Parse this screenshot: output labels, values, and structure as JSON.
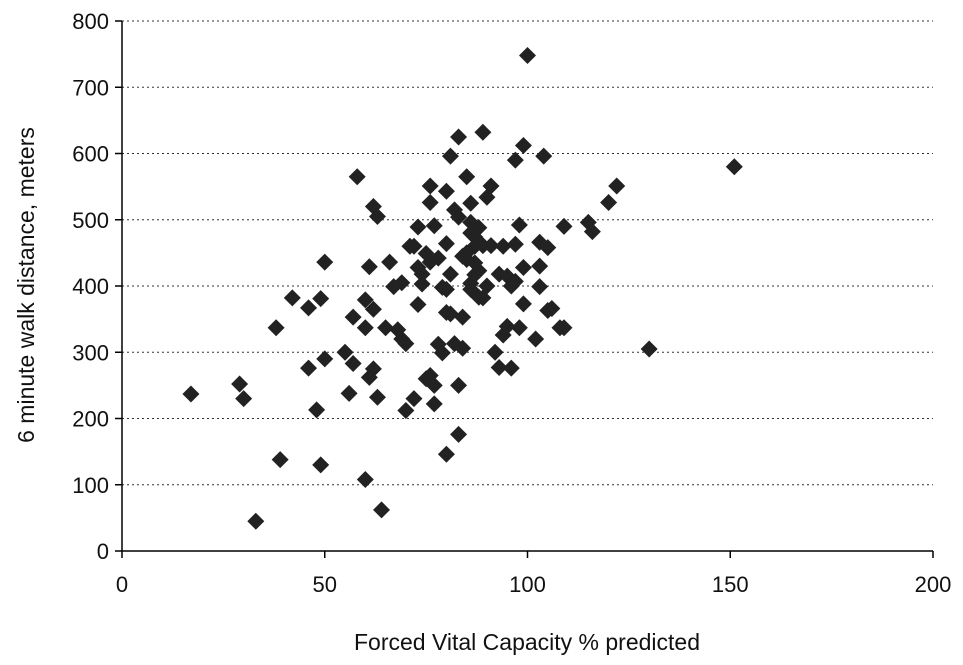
{
  "chart_data": {
    "type": "scatter",
    "title": "",
    "xlabel": "Forced Vital Capacity % predicted",
    "ylabel": "6 minute walk distance, meters",
    "xlim": [
      0,
      200
    ],
    "ylim": [
      0,
      800
    ],
    "xticks": [
      0,
      50,
      100,
      150,
      200
    ],
    "yticks": [
      0,
      100,
      200,
      300,
      400,
      500,
      600,
      700,
      800
    ],
    "grid": "horizontal-dotted",
    "legend": "none",
    "marker": "diamond",
    "marker_color": "#222222",
    "points": [
      [
        17,
        237
      ],
      [
        29,
        252
      ],
      [
        30,
        230
      ],
      [
        33,
        45
      ],
      [
        38,
        337
      ],
      [
        39,
        138
      ],
      [
        42,
        382
      ],
      [
        46,
        367
      ],
      [
        46,
        276
      ],
      [
        48,
        213
      ],
      [
        49,
        130
      ],
      [
        49,
        381
      ],
      [
        50,
        436
      ],
      [
        50,
        290
      ],
      [
        55,
        300
      ],
      [
        56,
        238
      ],
      [
        57,
        353
      ],
      [
        57,
        283
      ],
      [
        58,
        565
      ],
      [
        60,
        379
      ],
      [
        60,
        337
      ],
      [
        60,
        108
      ],
      [
        61,
        429
      ],
      [
        61,
        262
      ],
      [
        62,
        520
      ],
      [
        62,
        275
      ],
      [
        62,
        365
      ],
      [
        63,
        505
      ],
      [
        63,
        232
      ],
      [
        64,
        62
      ],
      [
        65,
        337
      ],
      [
        66,
        436
      ],
      [
        67,
        399
      ],
      [
        68,
        334
      ],
      [
        69,
        405
      ],
      [
        69,
        320
      ],
      [
        70,
        212
      ],
      [
        70,
        313
      ],
      [
        71,
        460
      ],
      [
        72,
        460
      ],
      [
        72,
        230
      ],
      [
        73,
        489
      ],
      [
        73,
        428
      ],
      [
        73,
        372
      ],
      [
        74,
        418
      ],
      [
        74,
        403
      ],
      [
        75,
        449
      ],
      [
        75,
        260
      ],
      [
        76,
        526
      ],
      [
        76,
        551
      ],
      [
        76,
        436
      ],
      [
        76,
        265
      ],
      [
        77,
        250
      ],
      [
        77,
        222
      ],
      [
        77,
        491
      ],
      [
        78,
        442
      ],
      [
        78,
        312
      ],
      [
        79,
        398
      ],
      [
        79,
        299
      ],
      [
        80,
        543
      ],
      [
        80,
        464
      ],
      [
        80,
        395
      ],
      [
        80,
        360
      ],
      [
        80,
        146
      ],
      [
        81,
        596
      ],
      [
        81,
        418
      ],
      [
        81,
        358
      ],
      [
        82,
        515
      ],
      [
        82,
        313
      ],
      [
        83,
        625
      ],
      [
        83,
        504
      ],
      [
        83,
        250
      ],
      [
        83,
        176
      ],
      [
        84,
        445
      ],
      [
        84,
        353
      ],
      [
        84,
        306
      ],
      [
        85,
        565
      ],
      [
        85,
        450
      ],
      [
        85,
        440
      ],
      [
        86,
        525
      ],
      [
        86,
        496
      ],
      [
        86,
        480
      ],
      [
        86,
        404
      ],
      [
        86,
        395
      ],
      [
        87,
        474
      ],
      [
        87,
        460
      ],
      [
        87,
        435
      ],
      [
        87,
        417
      ],
      [
        88,
        488
      ],
      [
        88,
        423
      ],
      [
        88,
        383
      ],
      [
        89,
        632
      ],
      [
        89,
        461
      ],
      [
        89,
        382
      ],
      [
        90,
        534
      ],
      [
        90,
        400
      ],
      [
        91,
        551
      ],
      [
        91,
        461
      ],
      [
        92,
        300
      ],
      [
        93,
        418
      ],
      [
        93,
        277
      ],
      [
        94,
        460
      ],
      [
        94,
        326
      ],
      [
        95,
        415
      ],
      [
        95,
        339
      ],
      [
        96,
        400
      ],
      [
        96,
        276
      ],
      [
        97,
        590
      ],
      [
        97,
        463
      ],
      [
        97,
        407
      ],
      [
        98,
        492
      ],
      [
        98,
        337
      ],
      [
        99,
        612
      ],
      [
        99,
        428
      ],
      [
        99,
        373
      ],
      [
        100,
        748
      ],
      [
        102,
        320
      ],
      [
        103,
        466
      ],
      [
        103,
        430
      ],
      [
        103,
        399
      ],
      [
        104,
        596
      ],
      [
        105,
        458
      ],
      [
        105,
        363
      ],
      [
        106,
        366
      ],
      [
        108,
        337
      ],
      [
        109,
        337
      ],
      [
        109,
        490
      ],
      [
        115,
        496
      ],
      [
        116,
        482
      ],
      [
        120,
        526
      ],
      [
        122,
        551
      ],
      [
        130,
        305
      ],
      [
        151,
        580
      ]
    ]
  }
}
